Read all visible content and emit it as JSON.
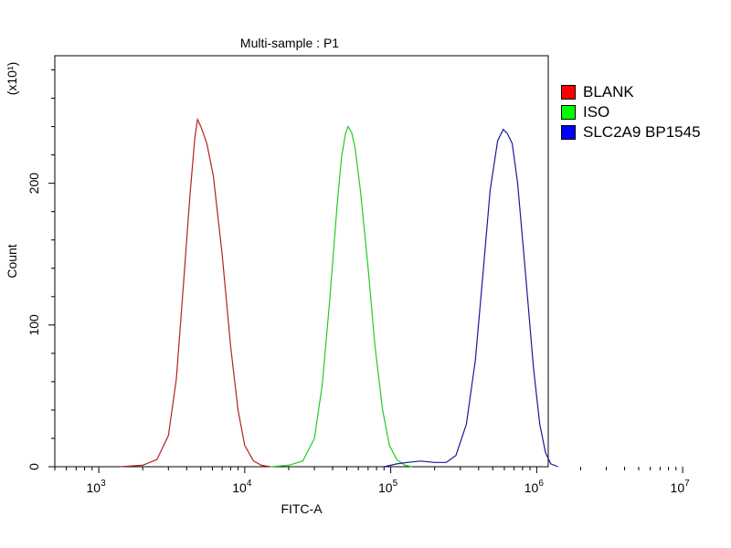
{
  "chart_data": {
    "type": "line",
    "title": "Multi-sample : P1",
    "xlabel": "FITC-A",
    "ylabel": "Count",
    "y_multiplier": "(x10¹)",
    "x_scale": "log",
    "xlim": [
      500,
      1200000
    ],
    "ylim": [
      0,
      290
    ],
    "grid": false,
    "legend_position": "right",
    "x_ticks": [
      {
        "value": 1000,
        "base": "10",
        "exp": "3"
      },
      {
        "value": 10000,
        "base": "10",
        "exp": "4"
      },
      {
        "value": 100000,
        "base": "10",
        "exp": "5"
      },
      {
        "value": 1000000,
        "base": "10",
        "exp": "6"
      },
      {
        "value": 10000000,
        "base": "10",
        "exp": "7"
      }
    ],
    "y_ticks": [
      {
        "value": 0,
        "label": "0"
      },
      {
        "value": 100,
        "label": "100"
      },
      {
        "value": 200,
        "label": "200"
      }
    ],
    "series": [
      {
        "name": "BLANK",
        "color": "#b22222",
        "points": [
          [
            1400,
            0
          ],
          [
            2000,
            1
          ],
          [
            2500,
            5
          ],
          [
            3000,
            22
          ],
          [
            3400,
            62
          ],
          [
            3800,
            128
          ],
          [
            4200,
            190
          ],
          [
            4550,
            232
          ],
          [
            4750,
            245
          ],
          [
            5000,
            240
          ],
          [
            5500,
            228
          ],
          [
            6100,
            205
          ],
          [
            7000,
            150
          ],
          [
            8000,
            85
          ],
          [
            9000,
            40
          ],
          [
            10000,
            15
          ],
          [
            11500,
            4
          ],
          [
            13000,
            1
          ],
          [
            15000,
            0
          ]
        ]
      },
      {
        "name": "ISO",
        "color": "#22cc22",
        "points": [
          [
            15000,
            0
          ],
          [
            20000,
            1
          ],
          [
            25000,
            4
          ],
          [
            30000,
            20
          ],
          [
            34000,
            58
          ],
          [
            38000,
            115
          ],
          [
            43000,
            185
          ],
          [
            46000,
            218
          ],
          [
            49000,
            235
          ],
          [
            51000,
            240
          ],
          [
            54000,
            236
          ],
          [
            57000,
            225
          ],
          [
            62000,
            195
          ],
          [
            70000,
            140
          ],
          [
            78000,
            85
          ],
          [
            88000,
            40
          ],
          [
            98000,
            15
          ],
          [
            110000,
            5
          ],
          [
            125000,
            1
          ],
          [
            140000,
            0
          ]
        ]
      },
      {
        "name": "SLC2A9 BP1545",
        "color": "#1a1a99",
        "points": [
          [
            90000,
            0
          ],
          [
            110000,
            2
          ],
          [
            130000,
            3
          ],
          [
            160000,
            4
          ],
          [
            200000,
            3
          ],
          [
            240000,
            3
          ],
          [
            280000,
            8
          ],
          [
            330000,
            30
          ],
          [
            380000,
            75
          ],
          [
            430000,
            138
          ],
          [
            480000,
            195
          ],
          [
            540000,
            230
          ],
          [
            590000,
            238
          ],
          [
            630000,
            235
          ],
          [
            680000,
            228
          ],
          [
            740000,
            200
          ],
          [
            840000,
            135
          ],
          [
            950000,
            70
          ],
          [
            1050000,
            30
          ],
          [
            1150000,
            10
          ],
          [
            1250000,
            2
          ],
          [
            1400000,
            0
          ]
        ]
      }
    ]
  }
}
